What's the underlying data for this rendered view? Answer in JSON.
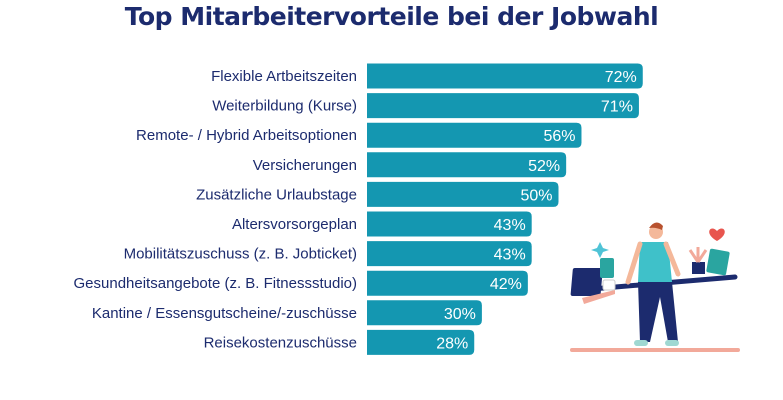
{
  "chart_data": {
    "type": "bar",
    "orientation": "horizontal",
    "title": "Top Mitarbeitervorteile bei der Jobwahl",
    "categories": [
      "Flexible Artbeitszeiten",
      "Weiterbildung (Kurse)",
      "Remote- / Hybrid Arbeitsoptionen",
      "Versicherungen",
      "Zusätzliche Urlaubstage",
      "Altersvorsorgeplan",
      "Mobilitätszuschuss (z. B. Jobticket)",
      "Gesundheitsangebote (z. B. Fitnessstudio)",
      "Kantine / Essensgutscheine/-zuschüsse",
      "Reisekostenzuschüsse"
    ],
    "values": [
      72,
      71,
      56,
      52,
      50,
      43,
      43,
      42,
      30,
      28
    ],
    "value_labels": [
      "72%",
      "71%",
      "56%",
      "52%",
      "50%",
      "43%",
      "43%",
      "42%",
      "30%",
      "28%"
    ],
    "unit": "%",
    "grid": false,
    "legend": "none",
    "colors": {
      "bar": "#1497b1",
      "title": "#1c2b6e",
      "label": "#1c2b6e",
      "value_text": "#ffffff"
    }
  }
}
